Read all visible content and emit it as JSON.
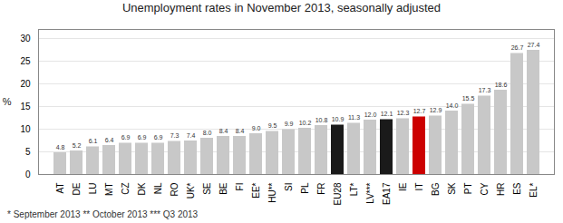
{
  "chart_data": {
    "type": "bar",
    "title": "Unemployment rates in November 2013, seasonally adjusted",
    "ylabel": "%",
    "categories": [
      "AT",
      "DE",
      "LU",
      "MT",
      "CZ",
      "DK",
      "NL",
      "RO",
      "UK*",
      "SE",
      "BE",
      "FI",
      "EE*",
      "HU**",
      "SI",
      "PL",
      "FR",
      "EU28",
      "LT*",
      "LV***",
      "EA17",
      "IE",
      "IT",
      "BG",
      "SK",
      "PT",
      "CY",
      "HR",
      "ES",
      "EL*"
    ],
    "values": [
      4.8,
      5.2,
      6.1,
      6.4,
      6.9,
      6.9,
      6.9,
      7.3,
      7.4,
      8.0,
      8.4,
      8.4,
      9.0,
      9.5,
      9.9,
      10.2,
      10.8,
      10.9,
      11.3,
      12.0,
      12.1,
      12.3,
      12.7,
      12.9,
      14.0,
      15.5,
      17.3,
      18.6,
      26.7,
      27.4
    ],
    "value_labels": [
      "4.8",
      "5.2",
      "6.1",
      "6.4",
      "6.9",
      "6.9",
      "6.9",
      "7.3",
      "7.4",
      "8.0",
      "8.4",
      "8.4",
      "9.0",
      "9.5",
      "9.9",
      "10.2",
      "10.8",
      "10.9",
      "11.3",
      "12.0",
      "12.1",
      "12.3",
      "12.7",
      "12.9",
      "14.0",
      "15.5",
      "17.3",
      "18.6",
      "26.7",
      "27.4"
    ],
    "colors": [
      "#c8c8c8",
      "#c8c8c8",
      "#c8c8c8",
      "#c8c8c8",
      "#c8c8c8",
      "#c8c8c8",
      "#c8c8c8",
      "#c8c8c8",
      "#c8c8c8",
      "#c8c8c8",
      "#c8c8c8",
      "#c8c8c8",
      "#c8c8c8",
      "#c8c8c8",
      "#c8c8c8",
      "#c8c8c8",
      "#c8c8c8",
      "#1a1a1a",
      "#c8c8c8",
      "#c8c8c8",
      "#1a1a1a",
      "#c8c8c8",
      "#cc0000",
      "#c8c8c8",
      "#c8c8c8",
      "#c8c8c8",
      "#c8c8c8",
      "#c8c8c8",
      "#c8c8c8",
      "#c8c8c8"
    ],
    "ylim": [
      0,
      32
    ],
    "yticks": [
      0,
      5,
      10,
      15,
      20,
      25,
      30
    ],
    "grid": true,
    "data_labels": true,
    "annotations": [
      "* September 2013    ** October 2013    *** Q3 2013"
    ]
  }
}
